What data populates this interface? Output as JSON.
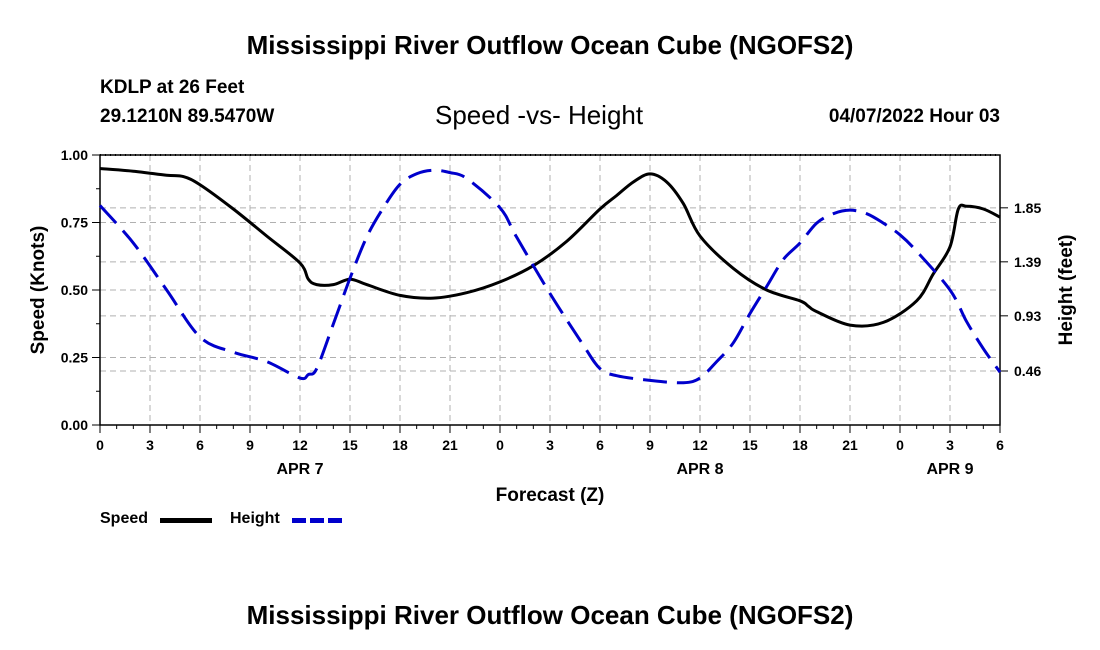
{
  "header": {
    "title": "Mississippi River Outflow Ocean Cube (NGOFS2)",
    "station": "KDLP at 26 Feet",
    "coords": "29.1210N  89.5470W",
    "chart_title": "Speed -vs- Height",
    "datetime": "04/07/2022 Hour 03"
  },
  "footer": {
    "title": "Mississippi River Outflow Ocean Cube (NGOFS2)"
  },
  "legend": {
    "speed_label": "Speed",
    "height_label": "Height"
  },
  "colors": {
    "speed": "#000000",
    "height": "#0000cc",
    "grid": "#b0b0b0"
  },
  "chart_data": {
    "type": "line",
    "title": "Speed -vs- Height",
    "xlabel": "Forecast (Z)",
    "ylabel": "Speed (Knots)",
    "y2label": "Height (feet)",
    "xlim": [
      0,
      54
    ],
    "ylim": [
      0,
      1.0
    ],
    "y2lim": [
      0,
      2.3
    ],
    "x_ticks": [
      0,
      3,
      6,
      9,
      12,
      15,
      18,
      21,
      24,
      27,
      30,
      33,
      36,
      39,
      42,
      45,
      48,
      51,
      54
    ],
    "x_tick_labels": [
      "0",
      "3",
      "6",
      "9",
      "12",
      "15",
      "18",
      "21",
      "0",
      "3",
      "6",
      "9",
      "12",
      "15",
      "18",
      "21",
      "0",
      "3",
      "6"
    ],
    "y_ticks": [
      0,
      0.25,
      0.5,
      0.75,
      1.0
    ],
    "y_tick_labels": [
      "0.00",
      "0.25",
      "0.50",
      "0.75",
      "1.00"
    ],
    "y2_ticks": [
      0.46,
      0.93,
      1.39,
      1.85
    ],
    "y2_tick_labels": [
      "0.46",
      "0.93",
      "1.39",
      "1.85"
    ],
    "day_labels": [
      {
        "x": 12,
        "label": "APR 7"
      },
      {
        "x": 36,
        "label": "APR 8"
      },
      {
        "x": 51,
        "label": "APR 9"
      }
    ],
    "grid": true,
    "series": [
      {
        "name": "Speed",
        "axis": "left",
        "style": "solid",
        "x": [
          0,
          2,
          4,
          5,
          6,
          8,
          10,
          12,
          12.5,
          13,
          14,
          15,
          16,
          18,
          20,
          22,
          24,
          26,
          28,
          30,
          31,
          32,
          33,
          34,
          35,
          36,
          38,
          40,
          42,
          42.5,
          43,
          45,
          47,
          49,
          50,
          51,
          51.5,
          52,
          53,
          54
        ],
        "y": [
          0.95,
          0.94,
          0.925,
          0.92,
          0.89,
          0.8,
          0.7,
          0.6,
          0.54,
          0.52,
          0.52,
          0.54,
          0.52,
          0.48,
          0.47,
          0.49,
          0.53,
          0.59,
          0.68,
          0.8,
          0.85,
          0.9,
          0.93,
          0.9,
          0.82,
          0.7,
          0.58,
          0.5,
          0.46,
          0.44,
          0.42,
          0.37,
          0.38,
          0.46,
          0.56,
          0.66,
          0.8,
          0.81,
          0.8,
          0.77
        ]
      },
      {
        "name": "Height",
        "axis": "right",
        "style": "dashed",
        "x": [
          0,
          2,
          4,
          6,
          8,
          10,
          12,
          12.5,
          13,
          14,
          15,
          16,
          17,
          18,
          19,
          20,
          21,
          22,
          24,
          25,
          27,
          29,
          30,
          31,
          33,
          35,
          36,
          37,
          38,
          39,
          40,
          41,
          42,
          43,
          44,
          45,
          46,
          47,
          48,
          49,
          51,
          52,
          53,
          54
        ],
        "y": [
          1.87,
          1.55,
          1.15,
          0.75,
          0.62,
          0.54,
          0.4,
          0.43,
          0.48,
          0.86,
          1.25,
          1.6,
          1.85,
          2.05,
          2.14,
          2.17,
          2.15,
          2.1,
          1.85,
          1.6,
          1.12,
          0.68,
          0.48,
          0.42,
          0.38,
          0.36,
          0.4,
          0.54,
          0.7,
          0.95,
          1.18,
          1.41,
          1.55,
          1.72,
          1.8,
          1.83,
          1.8,
          1.72,
          1.62,
          1.48,
          1.15,
          0.88,
          0.65,
          0.45
        ]
      }
    ]
  }
}
